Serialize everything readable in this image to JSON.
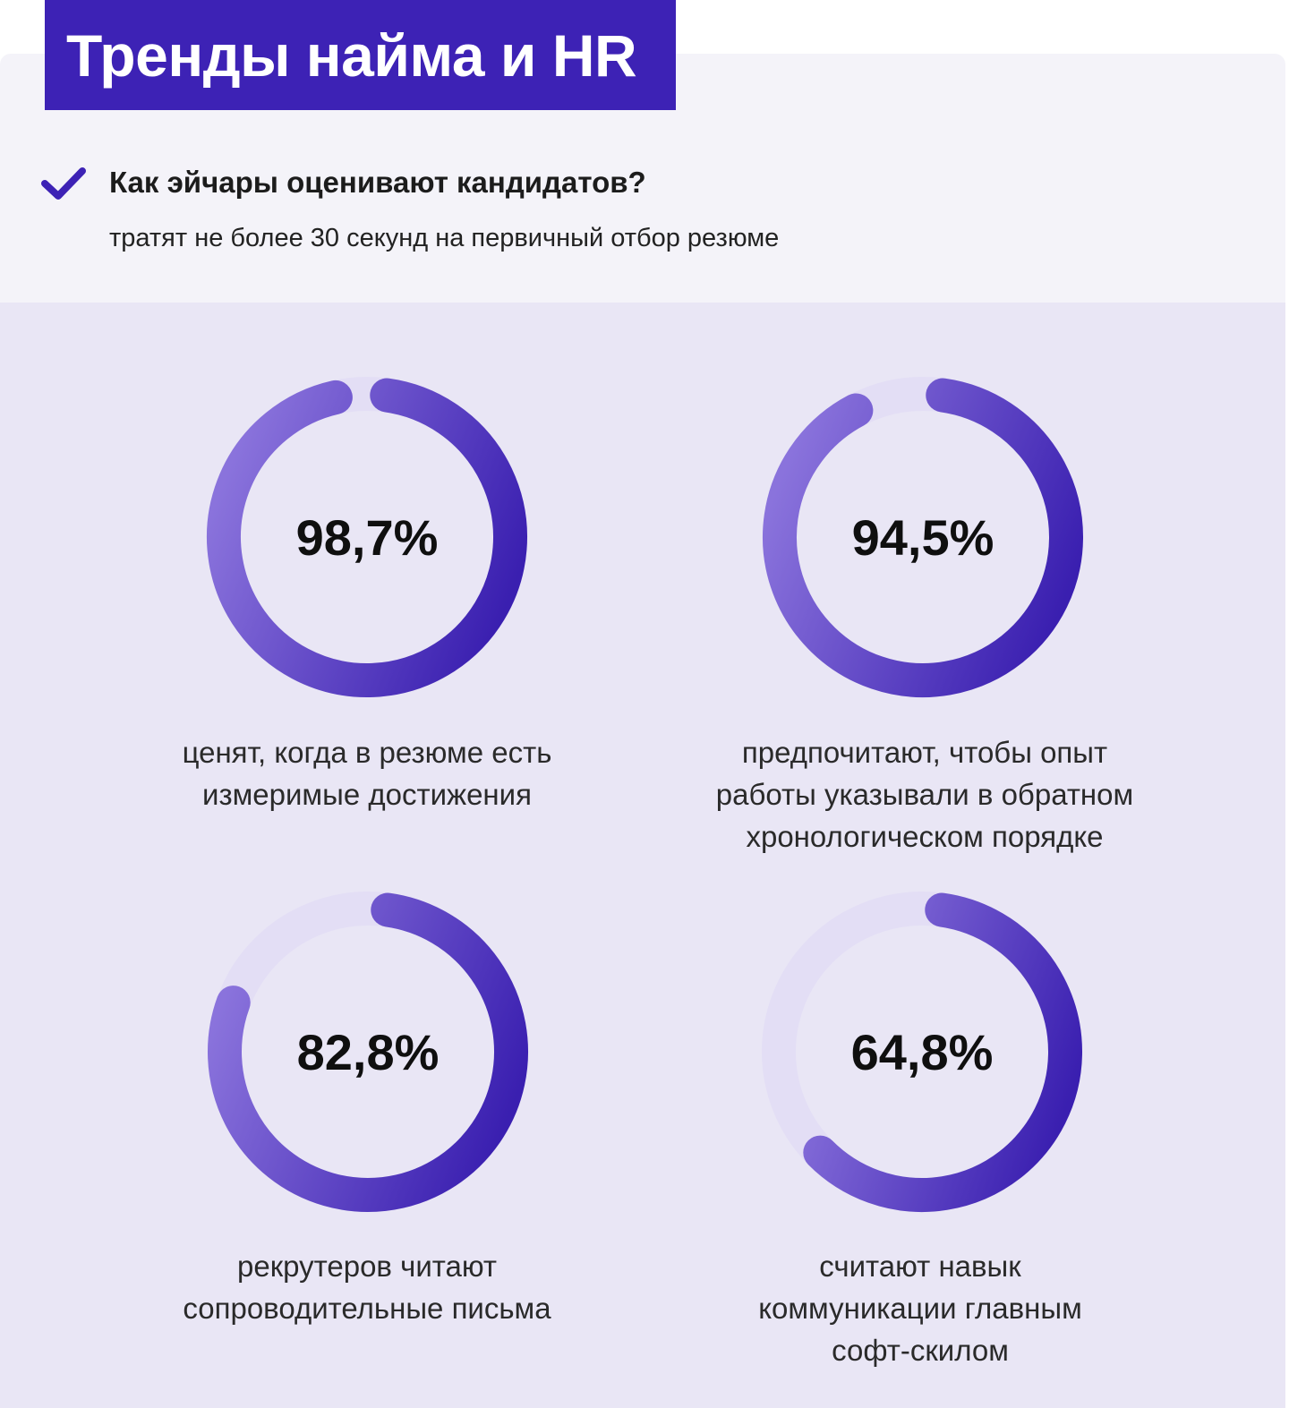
{
  "header": {
    "title": "Тренды найма и HR"
  },
  "intro": {
    "question": "Как эйчары оценивают кандидатов?",
    "subline": "тратят не более 30 секунд на первичный отбор резюме"
  },
  "colors": {
    "accent": "#3d22b5",
    "ring_start": "#8a73dc",
    "ring_end": "#3a1fb0",
    "track": "#e3def5",
    "panel": "#e9e6f5"
  },
  "chart_data": [
    {
      "type": "donut",
      "value": 98.7,
      "label": "98,7%",
      "caption": [
        "ценят, когда в резюме есть",
        "измеримые достижения"
      ]
    },
    {
      "type": "donut",
      "value": 94.5,
      "label": "94,5%",
      "caption": [
        "предпочитают, чтобы опыт",
        "работы указывали в обратном",
        "хронологическом порядке"
      ]
    },
    {
      "type": "donut",
      "value": 82.8,
      "label": "82,8%",
      "caption": [
        "рекрутеров читают",
        "сопроводительные письма"
      ]
    },
    {
      "type": "donut",
      "value": 64.8,
      "label": "64,8%",
      "caption": [
        "считают навык",
        "коммуникации главным",
        "софт-скилом"
      ]
    }
  ]
}
